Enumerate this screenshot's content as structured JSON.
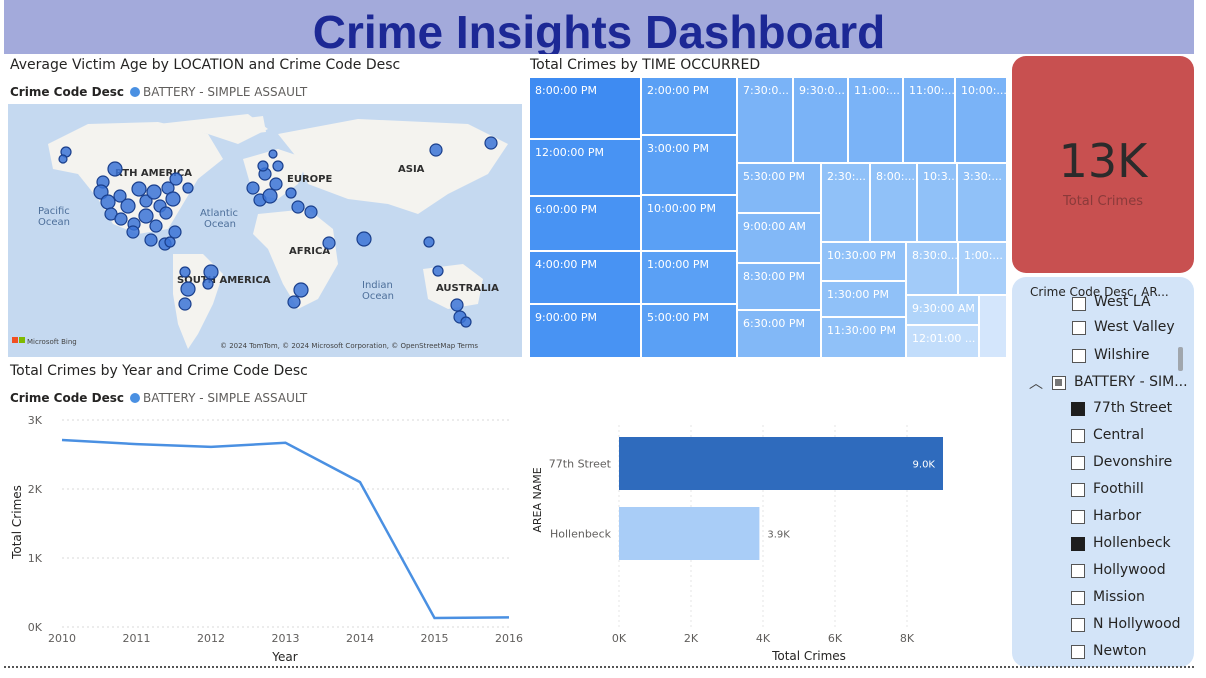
{
  "banner": {
    "title": "Crime Insights Dashboard"
  },
  "map_visual": {
    "title": "Average Victim Age by LOCATION and Crime Code Desc",
    "legend_field": "Crime Code Desc",
    "legend_item": "BATTERY - SIMPLE ASSAULT",
    "labels": {
      "north_america": "RTH AMERICA",
      "europe": "EUROPE",
      "asia": "ASIA",
      "africa": "AFRICA",
      "south_america": "SOUTH AMERICA",
      "australia": "AUSTRALIA",
      "pacific": "Pacific\nOcean",
      "atlantic": "Atlantic\nOcean",
      "indian": "Indian\nOcean"
    },
    "attribution": "© 2024 TomTom, © 2024 Microsoft Corporation, © OpenStreetMap  Terms",
    "bing": "Microsoft Bing"
  },
  "treemap": {
    "title": "Total Crimes by TIME OCCURRED",
    "tiles": [
      {
        "label": "8:00:00 PM"
      },
      {
        "label": "12:00:00 PM"
      },
      {
        "label": "6:00:00 PM"
      },
      {
        "label": "4:00:00 PM"
      },
      {
        "label": "9:00:00 PM"
      },
      {
        "label": "2:00:00 PM"
      },
      {
        "label": "3:00:00 PM"
      },
      {
        "label": "10:00:00 PM"
      },
      {
        "label": "1:00:00 PM"
      },
      {
        "label": "5:00:00 PM"
      },
      {
        "label": "7:30:0..."
      },
      {
        "label": "9:30:0..."
      },
      {
        "label": "11:00:..."
      },
      {
        "label": "11:00:..."
      },
      {
        "label": "10:00:..."
      },
      {
        "label": "5:30:00 PM"
      },
      {
        "label": "2:30:..."
      },
      {
        "label": "8:00:..."
      },
      {
        "label": "10:3..."
      },
      {
        "label": "3:30:..."
      },
      {
        "label": "9:00:00 AM"
      },
      {
        "label": "10:30:00 PM"
      },
      {
        "label": "8:30:0..."
      },
      {
        "label": "1:00:..."
      },
      {
        "label": "8:30:00 PM"
      },
      {
        "label": "1:30:00 PM"
      },
      {
        "label": "9:30:00 AM"
      },
      {
        "label": "6:30:00 PM"
      },
      {
        "label": "11:30:00 PM"
      },
      {
        "label": "12:01:00 ..."
      },
      {
        "label": ""
      }
    ]
  },
  "kpi": {
    "value": "13K",
    "label": "Total Crimes"
  },
  "slicer": {
    "header": "Crime Code Desc, AR...",
    "partial_item": "West LA",
    "items_top": [
      {
        "label": "West Valley",
        "checked": false
      },
      {
        "label": "Wilshire",
        "checked": false
      }
    ],
    "group": {
      "label": "BATTERY - SIM...",
      "collapse_icon": "chevron-up-icon"
    },
    "items": [
      {
        "label": "77th Street",
        "checked": true
      },
      {
        "label": "Central",
        "checked": false
      },
      {
        "label": "Devonshire",
        "checked": false
      },
      {
        "label": "Foothill",
        "checked": false
      },
      {
        "label": "Harbor",
        "checked": false
      },
      {
        "label": "Hollenbeck",
        "checked": true
      },
      {
        "label": "Hollywood",
        "checked": false
      },
      {
        "label": "Mission",
        "checked": false
      },
      {
        "label": "N Hollywood",
        "checked": false
      },
      {
        "label": "Newton",
        "checked": false
      }
    ]
  },
  "line_visual": {
    "title": "Total Crimes by Year and Crime Code Desc",
    "legend_field": "Crime Code Desc",
    "legend_item": "BATTERY - SIMPLE ASSAULT"
  },
  "bar_visual": {},
  "colors": {
    "banner_bg": "#a3aadb",
    "banner_text": "#1c2895",
    "kpi_bg": "#c85050",
    "slicer_bg": "#d3e4f8",
    "series": "#4a90e2",
    "bar_dark": "#2f6bbd",
    "bar_light": "#a9cdf7"
  },
  "chart_data": [
    {
      "type": "line",
      "title": "Total Crimes by Year and Crime Code Desc",
      "xlabel": "Year",
      "ylabel": "Total Crimes",
      "x": [
        2010,
        2011,
        2012,
        2013,
        2014,
        2015,
        2016
      ],
      "xticks": [
        "2010",
        "2011",
        "2012",
        "2013",
        "2014",
        "2015",
        "2016"
      ],
      "yticks": [
        "0K",
        "1K",
        "2K",
        "3K"
      ],
      "ylim": [
        0,
        3000
      ],
      "grid": true,
      "series": [
        {
          "name": "BATTERY - SIMPLE ASSAULT",
          "values": [
            2710,
            2650,
            2610,
            2670,
            2100,
            130,
            140
          ]
        }
      ]
    },
    {
      "type": "bar",
      "orientation": "horizontal",
      "xlabel": "Total Crimes",
      "ylabel": "AREA NAME",
      "categories": [
        "77th Street",
        "Hollenbeck"
      ],
      "values": [
        9000,
        3900
      ],
      "data_labels": [
        "9.0K",
        "3.9K"
      ],
      "xticks": [
        "0K",
        "2K",
        "4K",
        "6K",
        "8K"
      ],
      "xlim": [
        0,
        10000
      ],
      "grid": true
    }
  ]
}
